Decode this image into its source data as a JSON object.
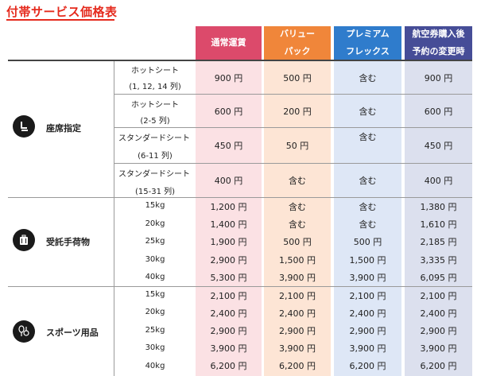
{
  "title": "付帯サービス価格表",
  "headers": [
    {
      "line1": "通常運賃",
      "line2": ""
    },
    {
      "line1": "バリュー",
      "line2": "パック"
    },
    {
      "line1": "プレミアム",
      "line2": "フレックス"
    },
    {
      "line1": "航空券購入後",
      "line2": "予約の変更時"
    }
  ],
  "categories": {
    "seat": {
      "label": "座席指定",
      "icon": "seat-icon"
    },
    "baggage": {
      "label": "受託手荷物",
      "icon": "suitcase-icon"
    },
    "sports": {
      "label": "スポーツ用品",
      "icon": "sports-equipment-icon"
    }
  },
  "seat_rows": [
    {
      "name": "ホットシート",
      "sub": "(1, 12, 14 列)",
      "values": [
        "900 円",
        "500 円",
        "含む",
        "900 円"
      ]
    },
    {
      "name": "ホットシート",
      "sub": "(2-5 列)",
      "values": [
        "600 円",
        "200 円",
        "含む",
        "600 円"
      ]
    },
    {
      "name": "スタンダードシート",
      "sub": "(6-11 列)",
      "values": [
        "450 円",
        "50 円",
        "含む",
        "450 円"
      ]
    },
    {
      "name": "スタンダードシート",
      "sub": "(15-31 列)",
      "values": [
        "400 円",
        "含む",
        "含む",
        "400 円"
      ]
    }
  ],
  "baggage_rows": [
    {
      "weight": "15kg",
      "values": [
        "1,200 円",
        "含む",
        "含む",
        "1,380 円"
      ]
    },
    {
      "weight": "20kg",
      "values": [
        "1,400 円",
        "含む",
        "含む",
        "1,610 円"
      ]
    },
    {
      "weight": "25kg",
      "values": [
        "1,900 円",
        "500 円",
        "500 円",
        "2,185 円"
      ]
    },
    {
      "weight": "30kg",
      "values": [
        "2,900 円",
        "1,500 円",
        "1,500 円",
        "3,335 円"
      ]
    },
    {
      "weight": "40kg",
      "values": [
        "5,300 円",
        "3,900 円",
        "3,900 円",
        "6,095 円"
      ]
    }
  ],
  "sports_rows": [
    {
      "weight": "15kg",
      "values": [
        "2,100 円",
        "2,100 円",
        "2,100 円",
        "2,100 円"
      ]
    },
    {
      "weight": "20kg",
      "values": [
        "2,400 円",
        "2,400 円",
        "2,400 円",
        "2,400 円"
      ]
    },
    {
      "weight": "25kg",
      "values": [
        "2,900 円",
        "2,900 円",
        "2,900 円",
        "2,900 円"
      ]
    },
    {
      "weight": "30kg",
      "values": [
        "3,900 円",
        "3,900 円",
        "3,900 円",
        "3,900 円"
      ]
    },
    {
      "weight": "40kg",
      "values": [
        "6,200 円",
        "6,200 円",
        "6,200 円",
        "6,200 円"
      ]
    }
  ]
}
